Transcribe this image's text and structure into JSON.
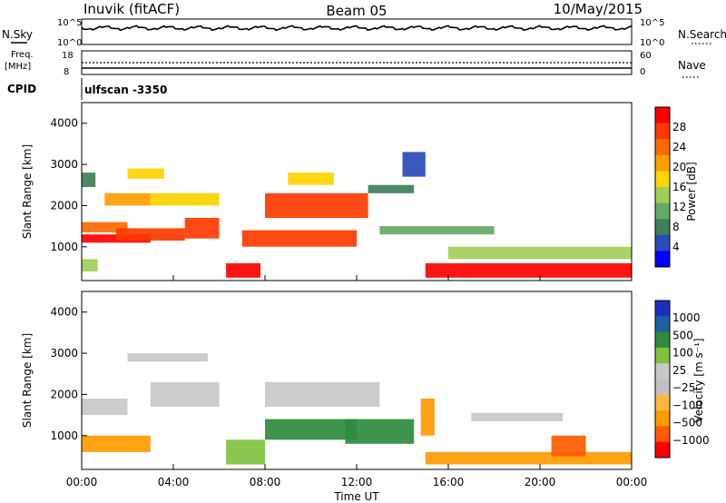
{
  "header": {
    "title": "Inuvik (fitACF)",
    "beam": "Beam 05",
    "date": "10/May/2015"
  },
  "top_panels": {
    "sky_label": "N.Sky",
    "sky_ticks": [
      "10^5",
      "10^0"
    ],
    "search_label": "N.Search",
    "freq_label_1": "Freq.",
    "freq_label_2": "[MHz]",
    "freq_ticks": [
      "18",
      "8"
    ],
    "nave_label": "Nave",
    "nave_ticks": [
      "60",
      "0"
    ],
    "cpid_label": "CPID",
    "cpid_value": "ulfscan -3350"
  },
  "colors": {
    "power": [
      "#0000ff",
      "#2a4ab8",
      "#3f7f5a",
      "#66a866",
      "#9fcf5a",
      "#ffd400",
      "#ff9f00",
      "#ff6a00",
      "#ff3a00",
      "#ff0000"
    ],
    "velocity": [
      "#ff0000",
      "#ff5a00",
      "#ff9a00",
      "#ffb640",
      "#c0c0c0",
      "#c8c8c8",
      "#7fc23f",
      "#2e8b3e",
      "#1f5fa0",
      "#1a2fbf"
    ]
  },
  "chart_data": [
    {
      "type": "heatmap",
      "panel": "power",
      "xlabel": "",
      "ylabel": "Slant Range [km]",
      "x_ticks": [
        "00:00",
        "04:00",
        "08:00",
        "12:00",
        "16:00",
        "20:00",
        "00:00"
      ],
      "xlim": [
        0,
        24
      ],
      "y_ticks": [
        1000,
        2000,
        3000,
        4000
      ],
      "ylim": [
        180,
        4500
      ],
      "colorbar_label": "Power [dB]",
      "colorbar_ticks": [
        4,
        8,
        12,
        16,
        20,
        24,
        28
      ],
      "colorbar_range": [
        0,
        30
      ],
      "bands": [
        {
          "t0": 0.0,
          "t1": 0.7,
          "r0": 400,
          "r1": 700,
          "value": 14
        },
        {
          "t0": 0.0,
          "t1": 3.0,
          "r0": 1100,
          "r1": 1300,
          "value": 28
        },
        {
          "t0": 0.0,
          "t1": 2.0,
          "r0": 1350,
          "r1": 1600,
          "value": 22
        },
        {
          "t0": 0.0,
          "t1": 0.6,
          "r0": 2450,
          "r1": 2800,
          "value": 6
        },
        {
          "t0": 1.0,
          "t1": 3.0,
          "r0": 2000,
          "r1": 2300,
          "value": 18
        },
        {
          "t0": 1.5,
          "t1": 4.5,
          "r0": 1150,
          "r1": 1450,
          "value": 26
        },
        {
          "t0": 2.0,
          "t1": 3.6,
          "r0": 2650,
          "r1": 2900,
          "value": 17
        },
        {
          "t0": 4.5,
          "t1": 6.0,
          "r0": 1200,
          "r1": 1700,
          "value": 25
        },
        {
          "t0": 3.0,
          "t1": 6.0,
          "r0": 2000,
          "r1": 2300,
          "value": 16
        },
        {
          "t0": 6.3,
          "t1": 7.8,
          "r0": 250,
          "r1": 600,
          "value": 28
        },
        {
          "t0": 7.0,
          "t1": 12.0,
          "r0": 1000,
          "r1": 1400,
          "value": 25
        },
        {
          "t0": 8.0,
          "t1": 12.5,
          "r0": 1700,
          "r1": 2300,
          "value": 24
        },
        {
          "t0": 9.0,
          "t1": 11.0,
          "r0": 2500,
          "r1": 2800,
          "value": 16
        },
        {
          "t0": 12.5,
          "t1": 14.5,
          "r0": 2300,
          "r1": 2500,
          "value": 8
        },
        {
          "t0": 13.0,
          "t1": 18.0,
          "r0": 1300,
          "r1": 1500,
          "value": 10
        },
        {
          "t0": 15.0,
          "t1": 24.0,
          "r0": 250,
          "r1": 600,
          "value": 28
        },
        {
          "t0": 16.0,
          "t1": 24.0,
          "r0": 700,
          "r1": 1000,
          "value": 13
        },
        {
          "t0": 14.0,
          "t1": 15.0,
          "r0": 2700,
          "r1": 3300,
          "value": 5
        }
      ]
    },
    {
      "type": "heatmap",
      "panel": "velocity",
      "xlabel": "Time UT",
      "ylabel": "Slant Range [km]",
      "x_ticks": [
        "00:00",
        "04:00",
        "08:00",
        "12:00",
        "16:00",
        "20:00",
        "00:00"
      ],
      "xlim": [
        0,
        24
      ],
      "y_ticks": [
        1000,
        2000,
        3000,
        4000
      ],
      "ylim": [
        180,
        4500
      ],
      "colorbar_label": "Velocity [m s⁻¹]",
      "colorbar_ticks": [
        "1000",
        "500",
        "100",
        "25",
        "−25",
        "−100",
        "−500",
        "−1000"
      ],
      "bands": [
        {
          "t0": 0.0,
          "t1": 3.0,
          "r0": 600,
          "r1": 1000,
          "value": -300
        },
        {
          "t0": 0.0,
          "t1": 2.0,
          "r0": 1500,
          "r1": 1900,
          "value": 0
        },
        {
          "t0": 3.0,
          "t1": 6.0,
          "r0": 1700,
          "r1": 2300,
          "value": 0
        },
        {
          "t0": 2.0,
          "t1": 5.5,
          "r0": 2800,
          "r1": 3000,
          "value": 0
        },
        {
          "t0": 6.3,
          "t1": 8.0,
          "r0": 300,
          "r1": 900,
          "value": 60
        },
        {
          "t0": 8.0,
          "t1": 12.0,
          "r0": 900,
          "r1": 1400,
          "value": 120
        },
        {
          "t0": 8.0,
          "t1": 13.0,
          "r0": 1700,
          "r1": 2300,
          "value": 0
        },
        {
          "t0": 11.5,
          "t1": 14.5,
          "r0": 800,
          "r1": 1400,
          "value": 150
        },
        {
          "t0": 14.8,
          "t1": 15.4,
          "r0": 1000,
          "r1": 1900,
          "value": -200
        },
        {
          "t0": 15.0,
          "t1": 24.0,
          "r0": 300,
          "r1": 600,
          "value": -150
        },
        {
          "t0": 20.5,
          "t1": 22.0,
          "r0": 500,
          "r1": 1000,
          "value": -600
        },
        {
          "t0": 17.0,
          "t1": 21.0,
          "r0": 1350,
          "r1": 1550,
          "value": 0
        }
      ]
    }
  ]
}
